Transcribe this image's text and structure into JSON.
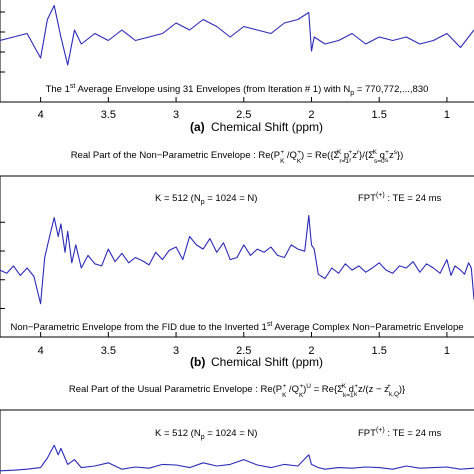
{
  "chart_data": [
    {
      "type": "line",
      "panel": "top (partial)",
      "xlim": [
        4.3,
        0.8
      ],
      "xticks": [
        "4",
        "3.5",
        "3",
        "2.5",
        "2",
        "1.5",
        "1"
      ],
      "inner_caption": "The 1st Average Envelope using 31 Envelopes (from Iteration # 1) with Np = 770,772,...,830",
      "inner_caption_parts": {
        "a": "The 1",
        "b": "st",
        "c": " Average Envelope using 31 Envelopes (from Iteration # 1) with N",
        "d": "p",
        "e": " = 770,772,...,830"
      },
      "xlabel_tag": "(a)",
      "xlabel": "Chemical Shift (ppm)",
      "series": [
        {
          "x": [
            4.3,
            4.2,
            4.1,
            4.0,
            3.95,
            3.9,
            3.85,
            3.8,
            3.75,
            3.7,
            3.6,
            3.5,
            3.4,
            3.3,
            3.2,
            3.1,
            3.0,
            2.9,
            2.8,
            2.7,
            2.6,
            2.5,
            2.4,
            2.3,
            2.2,
            2.1,
            2.02,
            2.0,
            1.98,
            1.9,
            1.8,
            1.7,
            1.6,
            1.5,
            1.4,
            1.3,
            1.2,
            1.1,
            1.0,
            0.9,
            0.8
          ],
          "y": [
            0.45,
            0.5,
            0.55,
            0.2,
            0.75,
            0.95,
            0.5,
            0.1,
            0.6,
            0.4,
            0.55,
            0.45,
            0.6,
            0.45,
            0.5,
            0.55,
            0.7,
            0.6,
            0.75,
            0.65,
            0.5,
            0.65,
            0.6,
            0.55,
            0.7,
            0.75,
            0.85,
            0.3,
            0.5,
            0.4,
            0.45,
            0.55,
            0.4,
            0.5,
            0.45,
            0.5,
            0.4,
            0.45,
            0.55,
            0.35,
            0.6
          ]
        }
      ]
    },
    {
      "type": "line",
      "panel": "middle",
      "title": "Real Part of the  Non-Parametric Envelope : Re(PK+ /QK+) = Re({Σ r=1..K pr+ z^r}/{Σ s=0..K qs+ z^s})",
      "title_parts": {
        "lead": "Real Part of the  Non−Parametric Envelope : Re(P",
        "K": "K",
        "plus": "+",
        "mid": " /Q",
        "close": ") = Re({Σ",
        "r1": "r=1",
        "p": " p",
        "r": "r",
        "z": "z",
        "sq": "r",
        "slash": "}/{Σ",
        "s0": "s=0",
        "q": " q",
        "s": "s",
        "zs": "z",
        "ss": "s",
        "end": "})"
      },
      "annotation_left": "K = 512 (Np = 1024 = N)",
      "annotation_left_parts": {
        "a": "K = 512 (N",
        "b": "p",
        "c": " = 1024 = N)"
      },
      "annotation_right": "FPT(+) : TE = 24 ms",
      "annotation_right_parts": {
        "a": "FPT",
        "b": "(+)",
        "c": " : TE = 24 ms"
      },
      "inner_caption": "Non-Parametric Envelope from the FID due to the Inverted 1st Average Complex Non-Parametric Envelope",
      "inner_caption_parts": {
        "a": "Non−Parametric Envelope from the FID due to the Inverted 1",
        "b": "st",
        "c": " Average Complex Non−Parametric Envelope"
      },
      "xlim": [
        4.3,
        0.8
      ],
      "xticks": [
        "4",
        "3.5",
        "3",
        "2.5",
        "2",
        "1.5",
        "1"
      ],
      "xlabel_tag": "(b)",
      "xlabel": "Chemical Shift (ppm)",
      "series": [
        {
          "x": [
            4.3,
            4.25,
            4.2,
            4.15,
            4.1,
            4.05,
            4.0,
            3.97,
            3.93,
            3.9,
            3.87,
            3.85,
            3.82,
            3.8,
            3.77,
            3.74,
            3.7,
            3.65,
            3.6,
            3.55,
            3.5,
            3.45,
            3.4,
            3.35,
            3.3,
            3.25,
            3.2,
            3.15,
            3.1,
            3.05,
            3.0,
            2.95,
            2.9,
            2.85,
            2.8,
            2.75,
            2.7,
            2.65,
            2.6,
            2.55,
            2.5,
            2.45,
            2.4,
            2.35,
            2.3,
            2.25,
            2.2,
            2.15,
            2.1,
            2.05,
            2.02,
            2.0,
            1.98,
            1.95,
            1.9,
            1.85,
            1.8,
            1.75,
            1.7,
            1.65,
            1.6,
            1.55,
            1.5,
            1.45,
            1.4,
            1.35,
            1.3,
            1.25,
            1.2,
            1.15,
            1.1,
            1.05,
            1.0,
            0.97,
            0.94,
            0.9,
            0.87,
            0.84,
            0.82,
            0.8
          ],
          "y": [
            0.38,
            0.35,
            0.42,
            0.33,
            0.4,
            0.32,
            0.06,
            0.5,
            0.72,
            0.88,
            0.7,
            0.82,
            0.55,
            0.75,
            0.45,
            0.62,
            0.4,
            0.52,
            0.44,
            0.42,
            0.58,
            0.46,
            0.54,
            0.45,
            0.5,
            0.47,
            0.43,
            0.55,
            0.48,
            0.57,
            0.6,
            0.48,
            0.7,
            0.62,
            0.58,
            0.68,
            0.55,
            0.64,
            0.48,
            0.5,
            0.62,
            0.52,
            0.58,
            0.55,
            0.6,
            0.52,
            0.5,
            0.62,
            0.58,
            0.56,
            0.9,
            0.62,
            0.58,
            0.34,
            0.3,
            0.4,
            0.35,
            0.44,
            0.38,
            0.42,
            0.36,
            0.4,
            0.45,
            0.38,
            0.35,
            0.42,
            0.4,
            0.46,
            0.36,
            0.44,
            0.4,
            0.35,
            0.48,
            0.33,
            0.42,
            0.38,
            0.34,
            0.45,
            0.4,
            0.1
          ]
        }
      ]
    },
    {
      "type": "line",
      "panel": "bottom (partial)",
      "title": "Real Part of the Usual Parametric Envelope : Re(PK+ /QK+)U = Re{Σ k=1..K dk+ z/(z − zk,Q+)}",
      "title_parts": {
        "lead": "Real Part of the Usual Parametric Envelope : Re(P",
        "K": "K",
        "plus": "+",
        "mid": " /Q",
        "close": ")",
        "U": "U",
        "eq": " = Re{Σ",
        "k1": "k=1",
        "d": " d",
        "k": "k",
        "rest": "z/(z − z",
        "kQ": "k,Q",
        "end": ")}"
      },
      "annotation_left": "K = 512 (Np = 1024 = N)",
      "annotation_left_parts": {
        "a": "K = 512 (N",
        "b": "p",
        "c": " = 1024 = N)"
      },
      "annotation_right": "FPT(+) : TE = 24 ms",
      "annotation_right_parts": {
        "a": "FPT",
        "b": "(+)",
        "c": " : TE = 24 ms"
      },
      "xlim": [
        4.3,
        0.8
      ],
      "series": [
        {
          "x": [
            4.3,
            4.2,
            4.1,
            4.0,
            3.95,
            3.9,
            3.87,
            3.85,
            3.8,
            3.75,
            3.7,
            3.6,
            3.5,
            3.4,
            3.3,
            3.2,
            3.1,
            3.0,
            2.9,
            2.8,
            2.7,
            2.6,
            2.5,
            2.4,
            2.3,
            2.2,
            2.1,
            2.02,
            2.0,
            1.95,
            1.9,
            1.8,
            1.7,
            1.6,
            1.5,
            1.4,
            1.3,
            1.2,
            1.1,
            1.0,
            0.9,
            0.8
          ],
          "y": [
            0.1,
            0.12,
            0.15,
            0.2,
            0.5,
            0.9,
            0.6,
            0.8,
            0.3,
            0.45,
            0.2,
            0.25,
            0.35,
            0.15,
            0.22,
            0.18,
            0.3,
            0.28,
            0.2,
            0.35,
            0.25,
            0.3,
            0.45,
            0.28,
            0.2,
            0.3,
            0.25,
            0.6,
            0.3,
            0.2,
            0.15,
            0.2,
            0.18,
            0.22,
            0.2,
            0.15,
            0.25,
            0.18,
            0.2,
            0.22,
            0.15,
            0.18
          ]
        }
      ]
    }
  ]
}
